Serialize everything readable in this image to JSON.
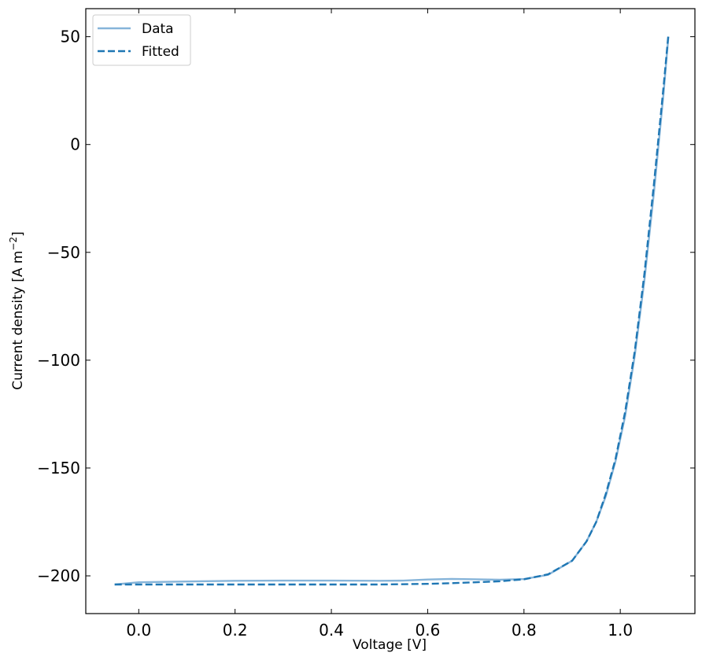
{
  "chart_data": {
    "type": "line",
    "title": "",
    "xlabel": "Voltage [V]",
    "ylabel_main": "Current density [A m",
    "ylabel_sup": "−2",
    "ylabel_close": "]",
    "xlim": [
      -0.11,
      1.155
    ],
    "ylim": [
      -217.5,
      63
    ],
    "xticks": [
      0.0,
      0.2,
      0.4,
      0.6,
      0.8,
      1.0
    ],
    "xtick_labels": [
      "0.0",
      "0.2",
      "0.4",
      "0.6",
      "0.8",
      "1.0"
    ],
    "yticks": [
      50,
      0,
      -50,
      -100,
      -150,
      -200
    ],
    "ytick_labels": [
      "50",
      "0",
      "−50",
      "−100",
      "−150",
      "−200"
    ],
    "legend": {
      "placement": "top-left",
      "entries": [
        "Data",
        "Fitted"
      ]
    },
    "grid": false,
    "series": [
      {
        "name": "Data",
        "color": "#86b4d9",
        "style": "solid",
        "x": [
          -0.05,
          0.0,
          0.05,
          0.1,
          0.2,
          0.3,
          0.4,
          0.5,
          0.55,
          0.6,
          0.65,
          0.7,
          0.75,
          0.8,
          0.85,
          0.9,
          0.93,
          0.95,
          0.97,
          0.99,
          1.01,
          1.03,
          1.05,
          1.07,
          1.09,
          1.1
        ],
        "y": [
          -204,
          -203,
          -202.8,
          -202.6,
          -202.3,
          -202.2,
          -202.2,
          -202.3,
          -202.2,
          -201.7,
          -201.4,
          -201.6,
          -201.8,
          -201.5,
          -199.5,
          -193,
          -184,
          -175,
          -163,
          -147,
          -126,
          -98,
          -63,
          -22,
          24,
          50
        ]
      },
      {
        "name": "Fitted",
        "color": "#1f77b4",
        "style": "dashed",
        "x": [
          -0.05,
          0.0,
          0.1,
          0.2,
          0.3,
          0.4,
          0.5,
          0.6,
          0.65,
          0.7,
          0.75,
          0.8,
          0.85,
          0.9,
          0.93,
          0.95,
          0.97,
          0.99,
          1.01,
          1.03,
          1.05,
          1.07,
          1.09,
          1.1
        ],
        "y": [
          -204,
          -204,
          -204,
          -204,
          -204,
          -204,
          -204,
          -203.7,
          -203.4,
          -203,
          -202.5,
          -201.6,
          -199.3,
          -193,
          -184,
          -175,
          -162,
          -146,
          -124,
          -96,
          -60,
          -18,
          27,
          51
        ]
      }
    ]
  }
}
